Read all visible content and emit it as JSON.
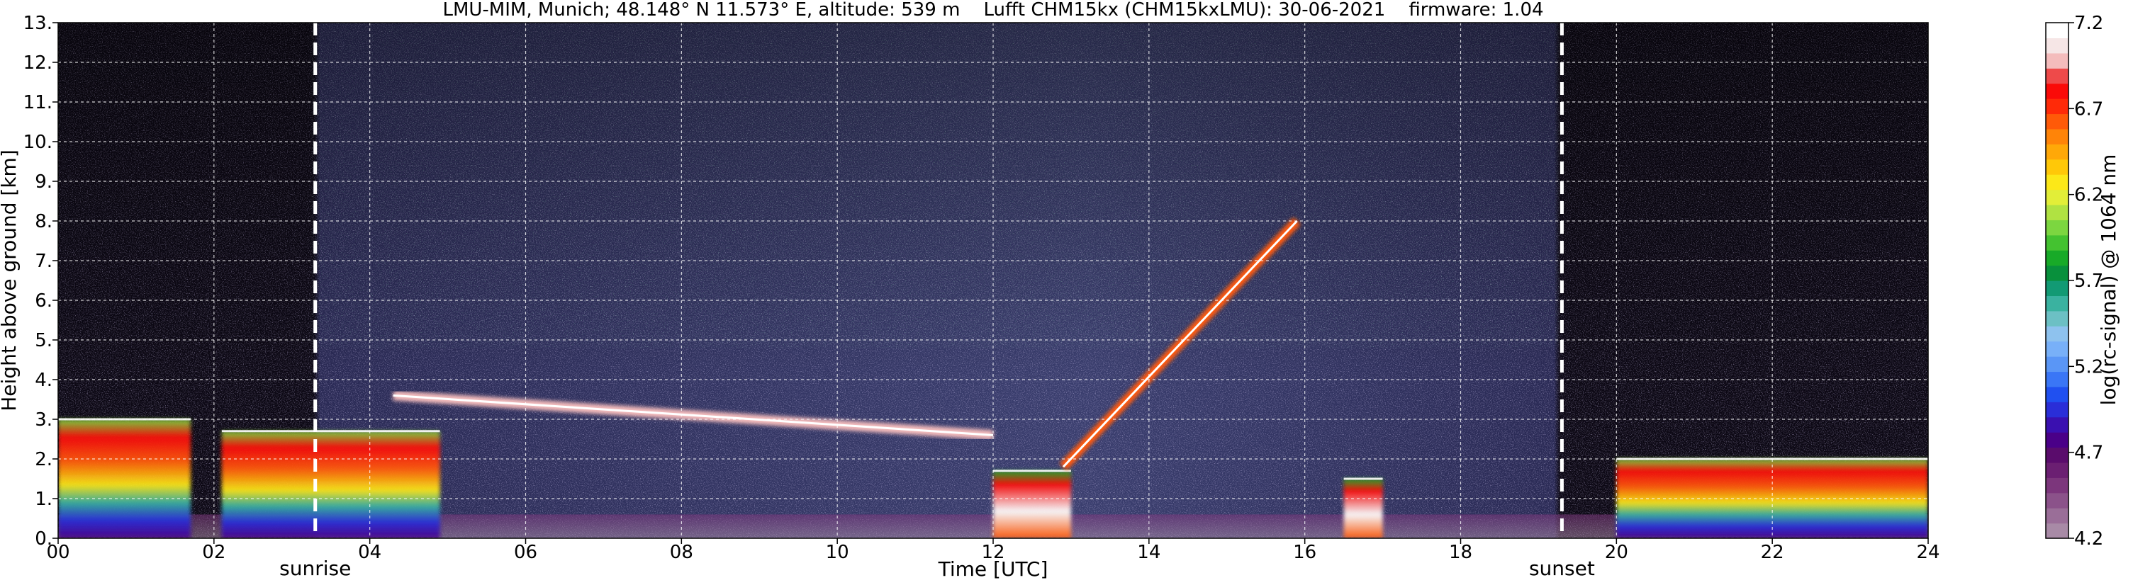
{
  "chart_data": {
    "type": "heatmap",
    "title": "LMU-MIM, Munich; 48.148° N 11.573° E, altitude: 539 m    Lufft CHM15kx (CHM15kxLMU): 30-06-2021    firmware: 1.04",
    "xlabel": "Time [UTC]",
    "ylabel": "Height above ground [km]",
    "xlim": [
      0,
      24
    ],
    "ylim": [
      0,
      13
    ],
    "x_ticks": [
      "00",
      "02",
      "04",
      "06",
      "08",
      "10",
      "12",
      "14",
      "16",
      "18",
      "20",
      "22",
      "24"
    ],
    "y_ticks": [
      "0.",
      "1.",
      "2.",
      "3.",
      "4.",
      "5.",
      "6.",
      "7.",
      "8.",
      "9.",
      "10.",
      "11.",
      "12.",
      "13."
    ],
    "grid": true,
    "colorbar": {
      "label": "log(rc-signal) @ 1064 nm",
      "range": [
        4.2,
        7.2
      ],
      "ticks": [
        "4.2",
        "4.7",
        "5.2",
        "5.7",
        "6.2",
        "6.7",
        "7.2"
      ],
      "colors": [
        "#a88aa6",
        "#9a6e98",
        "#8b528a",
        "#7c367c",
        "#6b1f72",
        "#5a0c6c",
        "#4a0088",
        "#3a10b0",
        "#2a2ed8",
        "#2050f0",
        "#3a76f6",
        "#5a96f6",
        "#78b0f8",
        "#8ec2ee",
        "#6cc0c4",
        "#3ab2a0",
        "#129a74",
        "#08903c",
        "#18aa28",
        "#44c230",
        "#7cd640",
        "#b0e242",
        "#e2ee38",
        "#fce818",
        "#ffc808",
        "#ffa808",
        "#ff8408",
        "#ff5a08",
        "#ff2a08",
        "#fa0a08",
        "#ee4a4a",
        "#f4bcbc",
        "#f6e6e6",
        "#ffffff"
      ]
    },
    "annotations": [
      {
        "text": "sunrise",
        "x": 3.3
      },
      {
        "text": "sunset",
        "x": 19.3
      }
    ],
    "marker_lines": [
      3.3,
      19.3
    ],
    "features": [
      {
        "type": "boundary_layer_aerosol",
        "x_start": 0.0,
        "x_end": 1.7,
        "y_bottom": 0.0,
        "y_top": 3.0,
        "level": 6.4
      },
      {
        "type": "boundary_layer_aerosol",
        "x_start": 2.1,
        "x_end": 4.9,
        "y_bottom": 0.0,
        "y_top": 2.7,
        "level": 6.3
      },
      {
        "type": "cloud",
        "x_start": 12.0,
        "x_end": 13.0,
        "y_bottom": 0.0,
        "y_top": 1.7,
        "level": 7.0
      },
      {
        "type": "cloud",
        "x_start": 16.5,
        "x_end": 17.0,
        "y_bottom": 0.0,
        "y_top": 1.5,
        "level": 7.0
      },
      {
        "type": "rising_layer",
        "x_start": 12.9,
        "x_end": 15.9,
        "y_start": 1.8,
        "y_end": 8.0,
        "level": 6.6
      },
      {
        "type": "residual_layer",
        "x_start": 4.3,
        "x_end": 12.0,
        "y_start": 3.6,
        "y_end": 2.6,
        "level": 7.0
      },
      {
        "type": "boundary_layer_aerosol",
        "x_start": 20.0,
        "x_end": 24.0,
        "y_bottom": 0.0,
        "y_top": 2.0,
        "level": 6.3
      }
    ]
  }
}
